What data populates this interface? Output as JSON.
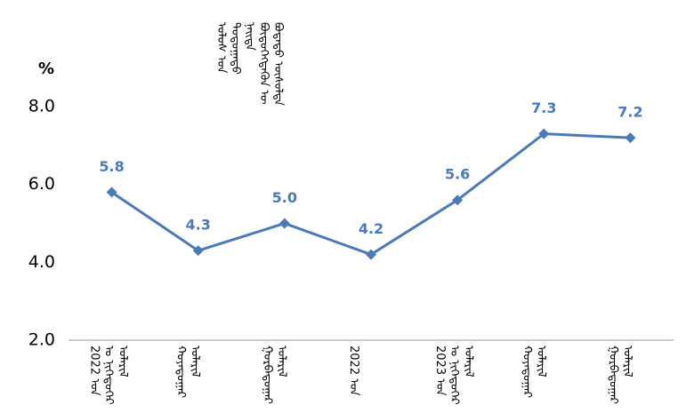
{
  "chart_data": {
    "type": "line",
    "title": "ᠤᠯᠤᠰ ᠤᠨ ᠳᠤᠲᠤᠭᠠᠳᠤ ᠨᠡᠢᠲᠡ ᠪᠦᠲᠦᠭᠡᠭᠳᠡᠬᠦᠨ ᠦ ᠪᠣᠳᠠᠲᠤ ᠥᠰᠦᠯᠲᠡ",
    "y_label": "%",
    "categories": [
      "2022 ᠣᠨ ᠤ ᠨᠢᠭᠡᠳᠦᠭᠡᠷ ᠤᠯᠠᠷᠢᠯ",
      "ᠬᠤᠶᠠᠳᠤᠭᠠᠷ ᠤᠯᠠᠷᠢᠯ",
      "ᠭᠤᠷᠪᠠᠳᠤᠭᠠᠷ ᠤᠯᠠᠷᠢᠯ",
      "2022 ᠣᠨ",
      "2023 ᠣᠨ ᠤ ᠨᠢᠭᠡᠳᠦᠭᠡᠷ ᠤᠯᠠᠷᠢᠯ",
      "ᠬᠤᠶᠠᠳᠤᠭᠠᠷ ᠤᠯᠠᠷᠢᠯ",
      "ᠭᠤᠷᠪᠠᠳᠤᠭᠠᠷ ᠤᠯᠠᠷᠢᠯ"
    ],
    "series": [
      {
        "color": "#4a7ab8",
        "values": [
          5.8,
          4.3,
          5.0,
          4.2,
          5.6,
          7.3,
          7.2
        ],
        "value_labels": [
          "5.8",
          "4.3",
          "5.0",
          "4.2",
          "5.6",
          "7.3",
          "7.2"
        ]
      }
    ],
    "ylim": [
      2,
      8
    ],
    "yticks": [
      {
        "value": 2,
        "label": "2.0"
      },
      {
        "value": 4,
        "label": "4.0"
      },
      {
        "value": 6,
        "label": "6.0"
      },
      {
        "value": 8,
        "label": "8.0"
      }
    ],
    "grid": false
  }
}
